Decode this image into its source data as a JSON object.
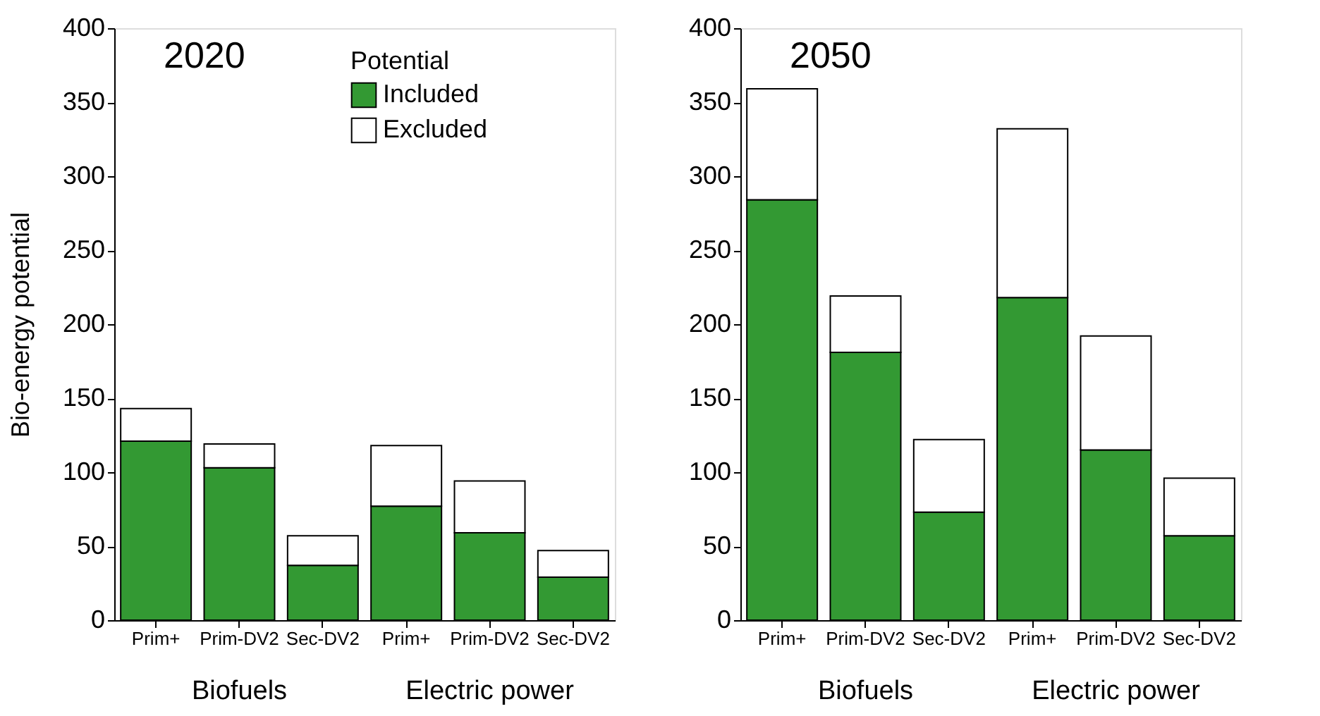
{
  "chart_data": [
    {
      "type": "bar",
      "stacked": true,
      "title": "2020",
      "ylabel": "Bio-energy potential",
      "legend_title": "Potential",
      "legend": "top",
      "categories": [
        "Prim+",
        "Prim-DV2",
        "Sec-DV2",
        "Prim+",
        "Prim-DV2",
        "Sec-DV2"
      ],
      "series": [
        {
          "name": "Included",
          "color": "#339933",
          "values": [
            121,
            103,
            37,
            77,
            59,
            29
          ]
        },
        {
          "name": "Excluded",
          "color": "#ffffff",
          "values": [
            22,
            16,
            20,
            41,
            35,
            18
          ]
        }
      ],
      "ylim": [
        0,
        400
      ],
      "yticks": [
        0,
        50,
        100,
        150,
        200,
        250,
        300,
        350,
        400
      ],
      "grid": false,
      "annotations": [
        "Biofuels",
        "Electric power"
      ]
    },
    {
      "type": "bar",
      "stacked": true,
      "title": "2050",
      "legend": false,
      "categories": [
        "Prim+",
        "Prim-DV2",
        "Sec-DV2",
        "Prim+",
        "Prim-DV2",
        "Sec-DV2"
      ],
      "series": [
        {
          "color": "#339933",
          "values": [
            284,
            181,
            73,
            218,
            115,
            57
          ]
        },
        {
          "color": "#ffffff",
          "values": [
            75,
            38,
            49,
            114,
            77,
            39
          ]
        }
      ],
      "ylim": [
        0,
        400
      ],
      "yticks": [
        0,
        50,
        100,
        150,
        200,
        250,
        300,
        350,
        400
      ],
      "grid": false,
      "annotations": [
        "Biofuels",
        "Electric power"
      ]
    }
  ]
}
